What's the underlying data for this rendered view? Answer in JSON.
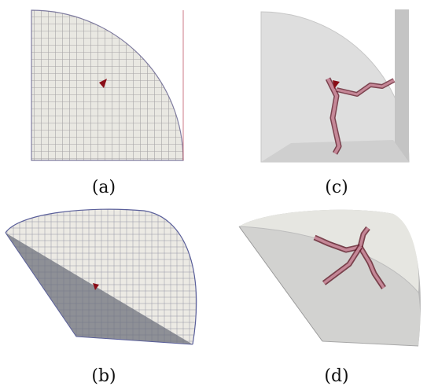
{
  "captions": {
    "a": "(a)",
    "b": "(b)",
    "c": "(c)",
    "d": "(d)"
  },
  "colors": {
    "background": "#ffffff",
    "mesh_face": "#e9e8e2",
    "mesh_grid": "#6f6b72",
    "mesh_dark_face": "#8e9096",
    "shaded_face": "#dcdcda",
    "shaded_dark": "#b9b9b9",
    "crack_fill": "#c58797",
    "crack_edge": "#5b1020",
    "marker": "#8a0d17"
  },
  "panels": [
    {
      "id": "a",
      "description_icon": "quarter-disk-mesh-icon"
    },
    {
      "id": "b",
      "description_icon": "quarter-sphere-mesh-icon"
    },
    {
      "id": "c",
      "description_icon": "quarter-sphere-crack-icon"
    },
    {
      "id": "d",
      "description_icon": "quarter-sphere-crack-icon"
    }
  ]
}
